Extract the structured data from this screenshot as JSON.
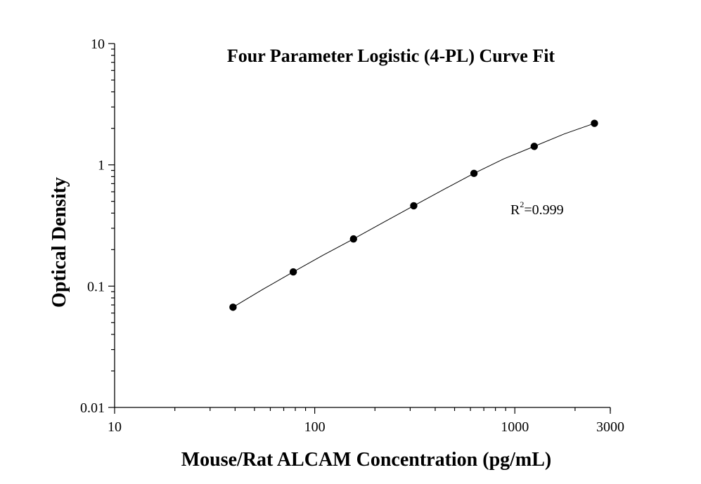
{
  "chart_data": {
    "type": "scatter",
    "title": "Four Parameter Logistic (4-PL) Curve Fit",
    "xlabel": "Mouse/Rat ALCAM Concentration (pg/mL)",
    "ylabel": "Optical Density",
    "x_scale": "log",
    "y_scale": "log",
    "xlim": [
      10,
      3000
    ],
    "ylim": [
      0.01,
      10
    ],
    "x_ticks": [
      {
        "value": 10,
        "label": "10"
      },
      {
        "value": 100,
        "label": "100"
      },
      {
        "value": 1000,
        "label": "1000"
      },
      {
        "value": 3000,
        "label": "3000"
      }
    ],
    "y_ticks": [
      {
        "value": 0.01,
        "label": "0.01"
      },
      {
        "value": 0.1,
        "label": "0.1"
      },
      {
        "value": 1,
        "label": "1"
      },
      {
        "value": 10,
        "label": "10"
      }
    ],
    "grid": false,
    "series": [
      {
        "points": [
          {
            "x": 39.06,
            "y": 0.067
          },
          {
            "x": 78.13,
            "y": 0.131
          },
          {
            "x": 156.25,
            "y": 0.245
          },
          {
            "x": 312.5,
            "y": 0.46
          },
          {
            "x": 625,
            "y": 0.85
          },
          {
            "x": 1250,
            "y": 1.42
          },
          {
            "x": 2500,
            "y": 2.2
          }
        ]
      }
    ],
    "fit_curve": {
      "model": "4-PL",
      "points": [
        {
          "x": 39.06,
          "y": 0.067
        },
        {
          "x": 55,
          "y": 0.094
        },
        {
          "x": 78.13,
          "y": 0.131
        },
        {
          "x": 110,
          "y": 0.18
        },
        {
          "x": 156.25,
          "y": 0.245
        },
        {
          "x": 220,
          "y": 0.335
        },
        {
          "x": 312.5,
          "y": 0.46
        },
        {
          "x": 440,
          "y": 0.625
        },
        {
          "x": 625,
          "y": 0.85
        },
        {
          "x": 880,
          "y": 1.12
        },
        {
          "x": 1250,
          "y": 1.42
        },
        {
          "x": 1770,
          "y": 1.8
        },
        {
          "x": 2500,
          "y": 2.2
        }
      ]
    },
    "annotation": {
      "base": "R",
      "superscript": "2",
      "text": "=0.999"
    }
  }
}
